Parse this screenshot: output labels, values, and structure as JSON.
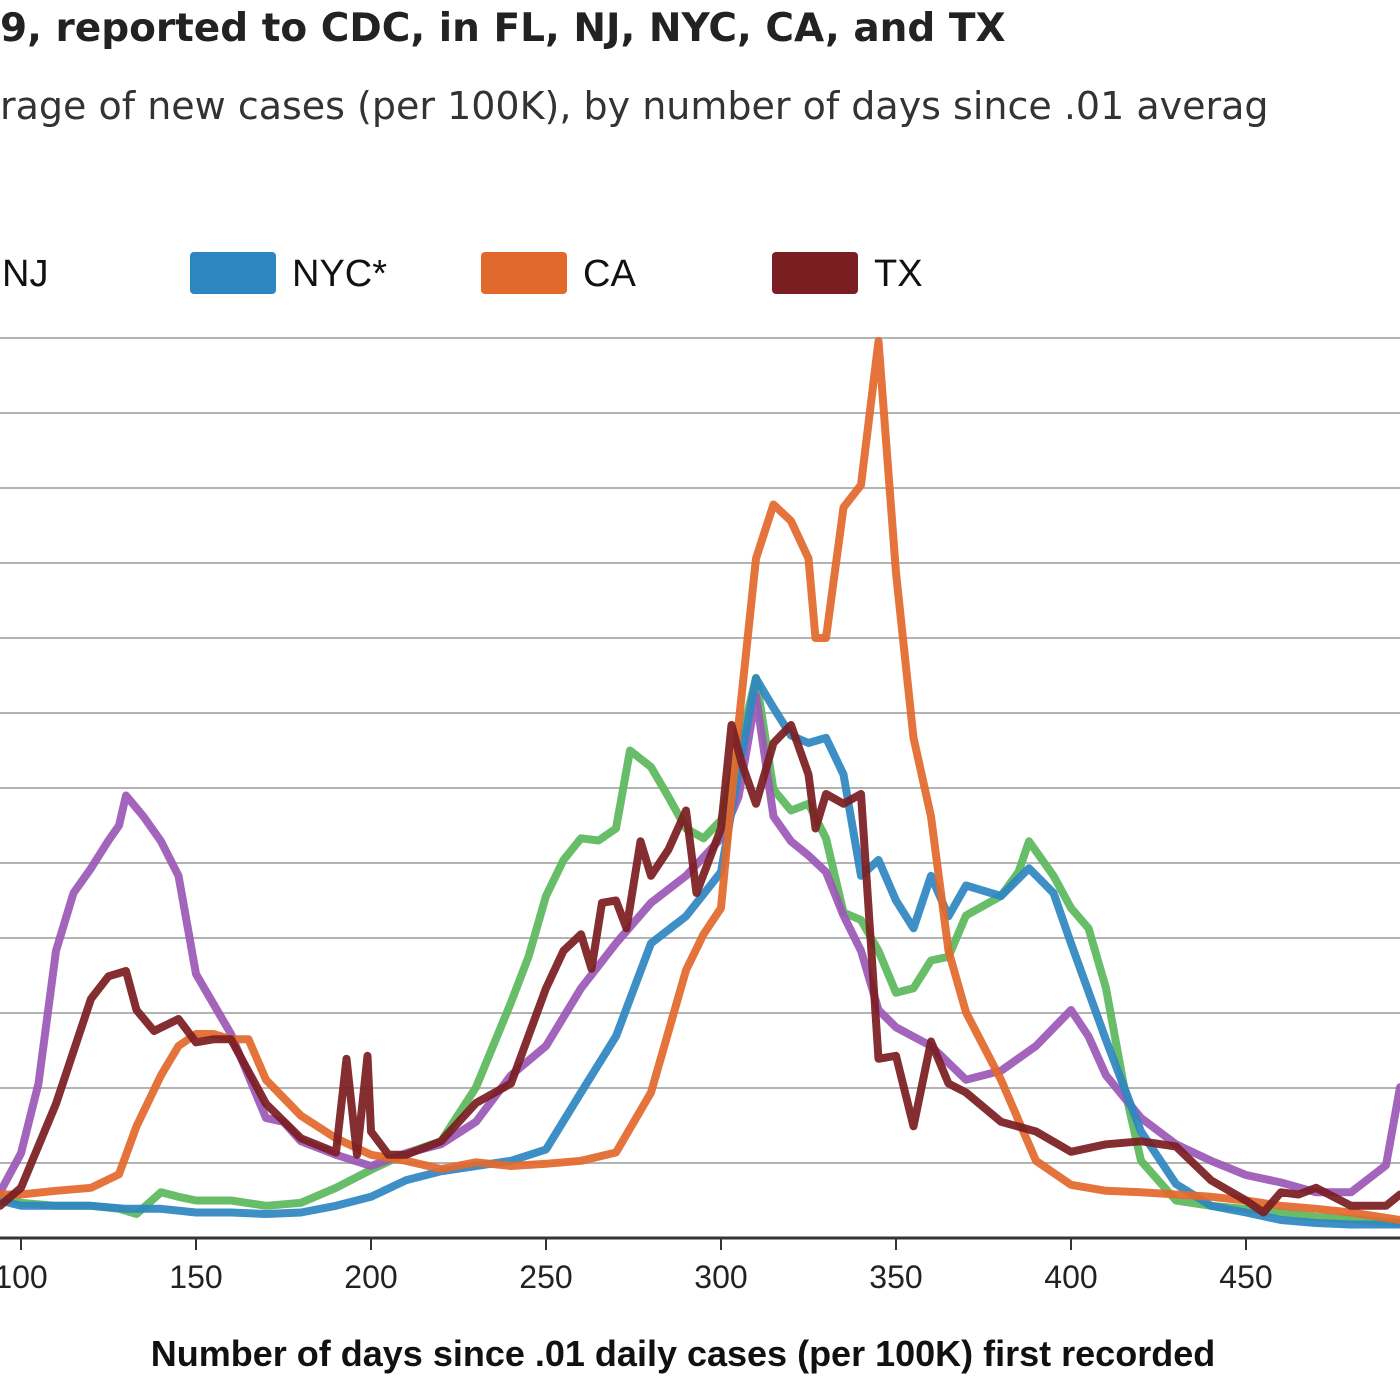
{
  "chart_data": {
    "type": "line",
    "title": "9, reported to CDC, in FL, NJ, NYC, CA, and TX",
    "subtitle": "rage of new cases (per 100K), by number of days since .01 averag",
    "xlabel": "Number of days since .01 daily cases (per 100K) first recorded",
    "ylabel": "",
    "xlim": [
      94,
      494
    ],
    "ylim": [
      0,
      120
    ],
    "x_ticks": [
      100,
      150,
      200,
      250,
      300,
      350,
      400,
      450
    ],
    "x_tick_labels": [
      "100",
      "150",
      "200",
      "250",
      "300",
      "350",
      "400",
      "450"
    ],
    "y_gridlines": [
      10,
      20,
      30,
      40,
      50,
      60,
      70,
      80,
      90,
      100,
      110,
      120
    ],
    "grid": true,
    "legend_position": "top",
    "legend": [
      {
        "label": "NJ",
        "color": "#9b59b6"
      },
      {
        "label": "NYC*",
        "color": "#2e86c1"
      },
      {
        "label": "CA",
        "color": "#e2692c"
      },
      {
        "label": "TX",
        "color": "#7b1e22"
      }
    ],
    "series": [
      {
        "name": "",
        "color": "#5cb85c",
        "x": [
          94,
          100,
          110,
          120,
          128,
          133,
          140,
          145,
          150,
          160,
          170,
          180,
          190,
          200,
          210,
          220,
          230,
          240,
          245,
          250,
          255,
          260,
          265,
          270,
          274,
          280,
          285,
          290,
          295,
          300,
          305,
          310,
          315,
          320,
          325,
          330,
          335,
          340,
          345,
          350,
          355,
          360,
          365,
          370,
          380,
          385,
          388,
          395,
          400,
          405,
          410,
          415,
          420,
          430,
          440,
          450,
          460,
          470,
          480,
          494
        ],
        "y": [
          5.5,
          4.7,
          4.3,
          4.3,
          3.9,
          3.2,
          6.1,
          5.5,
          5.0,
          5.0,
          4.3,
          4.7,
          6.7,
          9.1,
          11.3,
          12.9,
          20.1,
          31.4,
          37.5,
          45.6,
          50.4,
          53.3,
          53.0,
          54.6,
          65.0,
          62.8,
          58.8,
          54.6,
          53.3,
          55.7,
          65.0,
          74.7,
          59.8,
          57.0,
          57.9,
          53.3,
          43.4,
          42.4,
          38.3,
          32.7,
          33.3,
          37.0,
          37.5,
          43.0,
          45.6,
          48.8,
          52.9,
          48.3,
          44.0,
          41.3,
          33.3,
          20.6,
          10.3,
          5.0,
          4.3,
          3.9,
          3.4,
          2.8,
          2.5,
          2.0
        ]
      },
      {
        "name": "NJ",
        "color": "#9b59b6",
        "x": [
          94,
          100,
          105,
          110,
          115,
          120,
          125,
          128,
          130,
          135,
          140,
          145,
          150,
          155,
          160,
          170,
          175,
          180,
          190,
          200,
          210,
          220,
          230,
          240,
          250,
          260,
          270,
          280,
          290,
          300,
          305,
          310,
          315,
          320,
          325,
          330,
          335,
          340,
          345,
          350,
          360,
          370,
          380,
          390,
          400,
          405,
          410,
          420,
          430,
          440,
          450,
          460,
          470,
          480,
          490,
          494
        ],
        "y": [
          6.1,
          11.3,
          20.6,
          38.3,
          46.0,
          49.3,
          53.0,
          55.0,
          59.0,
          56.2,
          52.9,
          48.3,
          35.2,
          31.2,
          27.2,
          16.0,
          15.5,
          12.9,
          11.1,
          9.6,
          11.3,
          12.5,
          15.5,
          21.7,
          25.6,
          33.3,
          39.3,
          44.7,
          48.3,
          53.3,
          58.8,
          72.3,
          56.2,
          52.9,
          51.0,
          48.8,
          43.0,
          38.3,
          30.4,
          28.1,
          25.6,
          21.1,
          22.3,
          25.6,
          30.4,
          26.9,
          21.7,
          16.0,
          12.5,
          10.3,
          8.4,
          7.4,
          6.1,
          6.1,
          9.7,
          20.1
        ]
      },
      {
        "name": "NYC*",
        "color": "#2e86c1",
        "x": [
          94,
          100,
          110,
          120,
          130,
          140,
          150,
          160,
          170,
          180,
          190,
          200,
          210,
          220,
          230,
          240,
          250,
          260,
          270,
          280,
          290,
          300,
          305,
          310,
          315,
          320,
          325,
          330,
          335,
          340,
          345,
          350,
          355,
          360,
          365,
          370,
          380,
          388,
          395,
          400,
          410,
          420,
          430,
          440,
          450,
          460,
          470,
          480,
          494
        ],
        "y": [
          5.0,
          4.3,
          4.3,
          4.3,
          3.9,
          3.9,
          3.4,
          3.4,
          3.2,
          3.4,
          4.3,
          5.5,
          7.7,
          8.9,
          9.6,
          10.3,
          11.8,
          19.4,
          26.9,
          39.3,
          42.9,
          48.8,
          62.2,
          74.6,
          70.7,
          67.0,
          66.0,
          66.7,
          61.8,
          48.3,
          50.4,
          45.0,
          41.3,
          48.3,
          42.9,
          47.0,
          45.6,
          49.3,
          46.0,
          39.3,
          26.4,
          14.2,
          7.2,
          4.3,
          3.4,
          2.4,
          2.0,
          1.8,
          1.8
        ]
      },
      {
        "name": "CA",
        "color": "#e2692c",
        "x": [
          94,
          100,
          110,
          120,
          128,
          133,
          140,
          145,
          150,
          155,
          160,
          165,
          170,
          180,
          190,
          200,
          210,
          220,
          230,
          240,
          250,
          260,
          270,
          280,
          290,
          295,
          300,
          305,
          310,
          315,
          320,
          325,
          327,
          330,
          335,
          340,
          345,
          350,
          355,
          360,
          365,
          370,
          380,
          390,
          400,
          410,
          420,
          430,
          440,
          450,
          460,
          470,
          480,
          494
        ],
        "y": [
          5.8,
          5.8,
          6.3,
          6.7,
          8.5,
          14.9,
          21.7,
          25.6,
          27.2,
          27.2,
          26.5,
          26.5,
          21.1,
          16.3,
          13.3,
          11.1,
          10.3,
          9.2,
          10.1,
          9.6,
          9.9,
          10.3,
          11.4,
          19.4,
          35.7,
          40.5,
          44.0,
          68.4,
          90.6,
          97.8,
          95.6,
          90.6,
          80.0,
          80.0,
          97.4,
          100.4,
          119.6,
          88.7,
          66.7,
          56.2,
          38.3,
          30.1,
          21.1,
          10.3,
          7.1,
          6.3,
          6.1,
          5.8,
          5.5,
          5.0,
          4.3,
          3.9,
          3.4,
          2.4
        ]
      },
      {
        "name": "TX",
        "color": "#7b1e22",
        "x": [
          94,
          100,
          110,
          120,
          125,
          130,
          133,
          138,
          145,
          150,
          155,
          160,
          170,
          180,
          190,
          193,
          196,
          199,
          200,
          205,
          210,
          220,
          230,
          240,
          250,
          255,
          260,
          263,
          266,
          270,
          273,
          277,
          280,
          285,
          290,
          293,
          296,
          300,
          303,
          306,
          310,
          315,
          320,
          325,
          327,
          330,
          335,
          340,
          345,
          350,
          355,
          360,
          365,
          370,
          380,
          390,
          400,
          410,
          420,
          430,
          440,
          450,
          455,
          460,
          465,
          470,
          480,
          490,
          494
        ],
        "y": [
          4.3,
          6.7,
          17.9,
          31.9,
          34.9,
          35.6,
          30.4,
          27.6,
          29.2,
          26.1,
          26.5,
          26.5,
          17.9,
          13.3,
          11.4,
          23.9,
          11.1,
          24.3,
          14.2,
          11.1,
          11.1,
          12.9,
          18.0,
          20.6,
          33.3,
          38.3,
          40.5,
          35.9,
          44.7,
          45.0,
          41.3,
          52.9,
          48.3,
          51.8,
          57.0,
          46.0,
          49.7,
          54.6,
          68.4,
          63.2,
          57.9,
          66.0,
          68.4,
          61.8,
          54.6,
          59.2,
          57.9,
          59.2,
          23.9,
          24.3,
          14.9,
          26.2,
          20.6,
          19.4,
          15.5,
          14.2,
          11.5,
          12.5,
          12.9,
          12.2,
          7.7,
          5.0,
          3.4,
          6.1,
          5.8,
          6.7,
          4.3,
          4.3,
          5.8
        ]
      }
    ]
  }
}
